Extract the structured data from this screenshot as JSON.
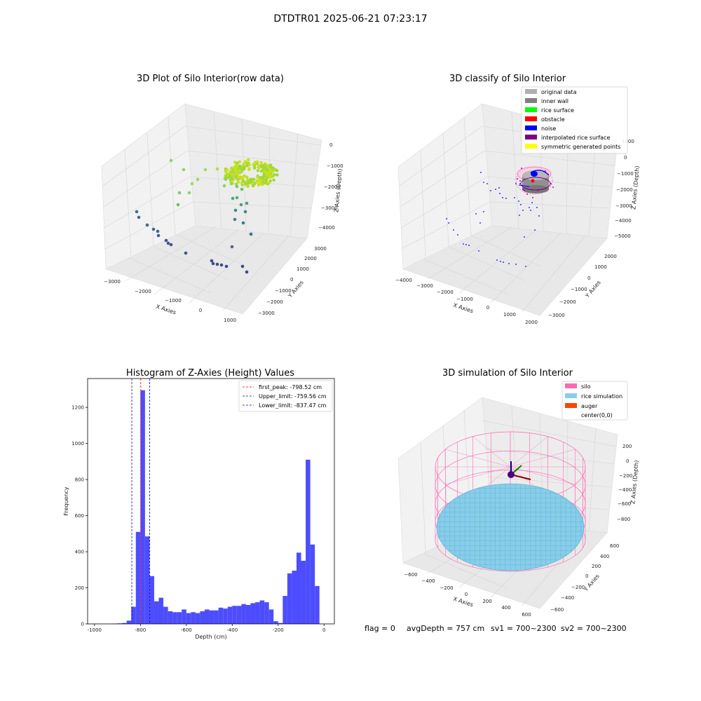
{
  "figure": {
    "title": "DTDTR01 2025-06-21 07:23:17",
    "footer": {
      "flag": "flag = 0",
      "avg_depth": "avgDepth = 757 cm",
      "sv1": "sv1 = 700~2300",
      "sv2": "sv2 = 700~2300"
    }
  },
  "colors": {
    "hist_bar": "#4d4dff",
    "first_peak": "#ff0000",
    "limits": "#0000ff",
    "original": "#b0b0b0",
    "inner_wall": "#808080",
    "rice_surface": "#00ff00",
    "obstacle": "#ff0000",
    "noise": "#0000ff",
    "interpolated": "#800080",
    "symmetric": "#ffff00",
    "silo": "#ff69b4",
    "rice_sim": "#87ceeb",
    "auger": "#ff4500"
  },
  "chart_data": [
    {
      "type": "scatter",
      "projection": "3d",
      "title": "3D Plot of Silo Interior(row data)",
      "xlabel": "X Axies",
      "ylabel": "Y Axies",
      "zlabel": "Z Axies (Depth)",
      "x_ticks": [
        "−3000",
        "−2000",
        "−1000",
        "0",
        "1000"
      ],
      "y_ticks": [
        "−3000",
        "−2000",
        "−1000",
        "0",
        "1000",
        "2000",
        "3000"
      ],
      "z_ticks": [
        "0",
        "−1000",
        "−2000",
        "−3000",
        "−4000"
      ],
      "xlim": [
        -3300,
        1200
      ],
      "ylim": [
        -3300,
        3300
      ],
      "zlim": [
        -4700,
        200
      ],
      "colormap": "viridis (by depth)",
      "grid": true
    },
    {
      "type": "scatter",
      "projection": "3d",
      "title": "3D classify of Silo Interior",
      "xlabel": "X Axies",
      "ylabel": "Y Axies",
      "zlabel": "Z Axies (Depth)",
      "x_ticks": [
        "−4000",
        "−3000",
        "−2000",
        "−1000",
        "0",
        "1000",
        "2000"
      ],
      "y_ticks": [
        "−3000",
        "−2000",
        "−1000",
        "0",
        "1000",
        "2000"
      ],
      "z_ticks": [
        "1000",
        "0",
        "−1000",
        "−2000",
        "−3000",
        "−4000",
        "−5000"
      ],
      "legend_position": "top-right",
      "legend": [
        "original data",
        "inner wall",
        "rice surface",
        "obstacle",
        "noise",
        "interpolated rice surface",
        "symmetric generated points"
      ],
      "grid": true
    },
    {
      "type": "bar",
      "title": "Histogram of Z-Axies (Height) Values",
      "xlabel": "Depth (cm)",
      "ylabel": "Frequency",
      "xlim": [
        -1030,
        45
      ],
      "ylim": [
        0,
        1360
      ],
      "x_ticks": [
        -1000,
        -800,
        -600,
        -400,
        -200,
        0
      ],
      "y_ticks": [
        0,
        200,
        400,
        600,
        800,
        1000,
        1200
      ],
      "bin_width": 20,
      "bins_left": [
        -920,
        -900,
        -880,
        -860,
        -840,
        -820,
        -800,
        -780,
        -760,
        -740,
        -720,
        -700,
        -680,
        -660,
        -640,
        -620,
        -600,
        -580,
        -560,
        -540,
        -520,
        -500,
        -480,
        -460,
        -440,
        -420,
        -400,
        -380,
        -360,
        -340,
        -320,
        -300,
        -280,
        -260,
        -240,
        -220,
        -200,
        -180,
        -160,
        -140,
        -120,
        -100,
        -80,
        -60,
        -40,
        -20
      ],
      "counts": [
        2,
        3,
        5,
        18,
        95,
        510,
        1295,
        485,
        265,
        125,
        145,
        95,
        70,
        65,
        65,
        80,
        60,
        65,
        60,
        70,
        80,
        75,
        75,
        90,
        85,
        95,
        100,
        100,
        110,
        105,
        115,
        120,
        130,
        120,
        80,
        15,
        5,
        155,
        280,
        295,
        395,
        350,
        910,
        440,
        210,
        0
      ],
      "vlines": [
        {
          "label": "first_peak: -798.52 cm",
          "x": -798.52,
          "color": "#ff0000"
        },
        {
          "label": "Upper_limit: -759.56 cm",
          "x": -759.56,
          "color": "#0000ff"
        },
        {
          "label": "Lower_limit: -837.47 cm",
          "x": -837.47,
          "color": "#0000ff"
        }
      ],
      "legend_position": "top-right",
      "grid": false
    },
    {
      "type": "surface",
      "projection": "3d",
      "title": "3D simulation of Silo Interior",
      "xlabel": "X Axies",
      "ylabel": "Y Axies",
      "zlabel": "Z Axies (Depth)",
      "x_ticks": [
        "−600",
        "−400",
        "−200",
        "0",
        "200",
        "400",
        "600"
      ],
      "y_ticks": [
        "−600",
        "−400",
        "−200",
        "0",
        "200",
        "400",
        "600"
      ],
      "z_ticks": [
        "200",
        "0",
        "−200",
        "−400",
        "−600",
        "−800"
      ],
      "legend_position": "top-right",
      "legend": [
        "silo",
        "rice simulation",
        "auger",
        "center(0,0)"
      ],
      "grid": true
    }
  ]
}
